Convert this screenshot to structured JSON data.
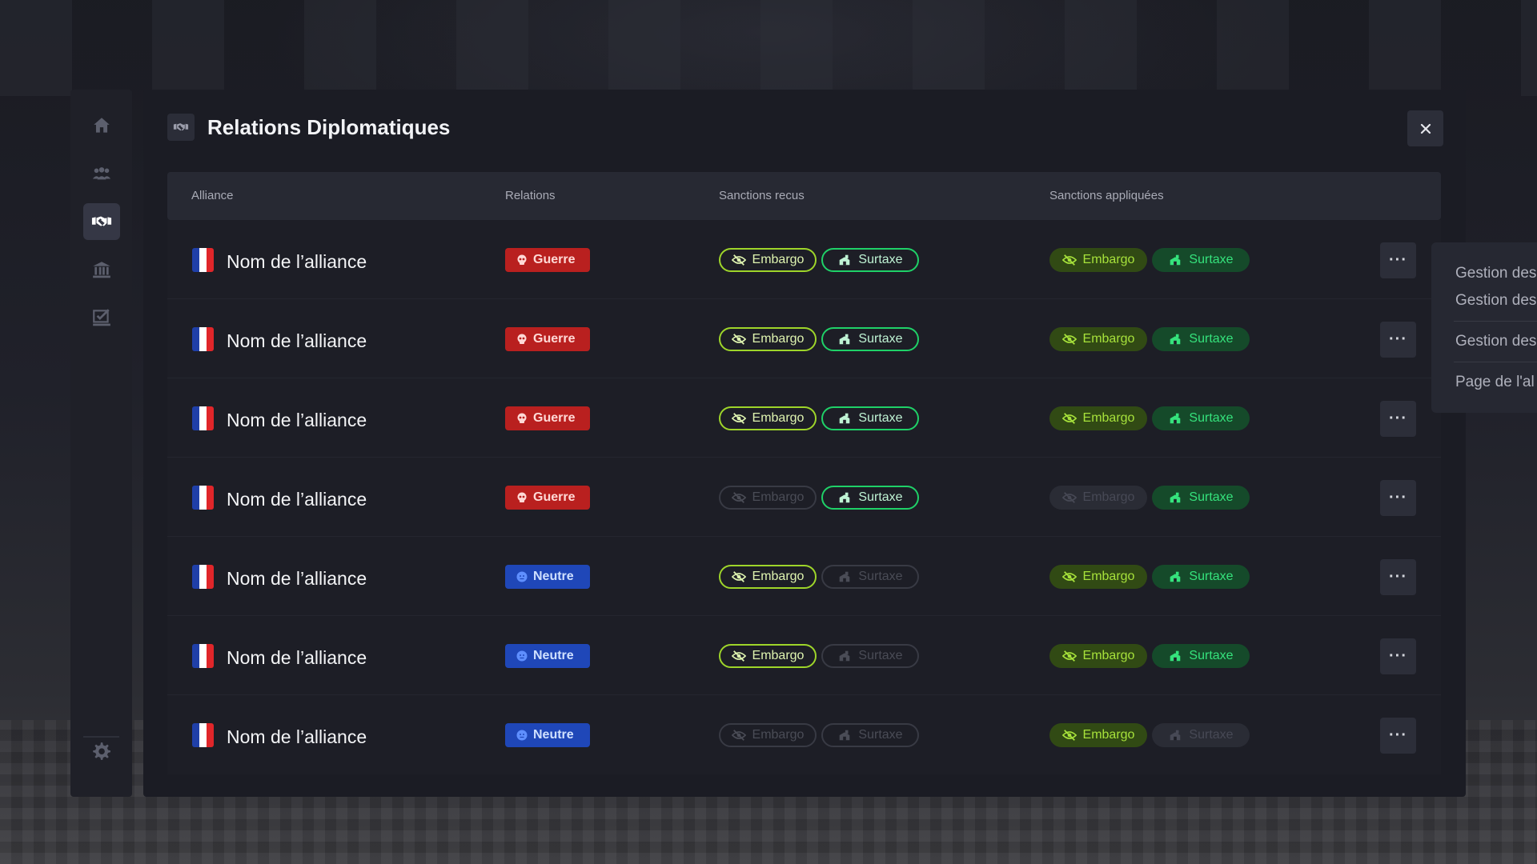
{
  "window": {
    "title": "Relations Diplomatiques",
    "close_icon": "close-icon"
  },
  "sidebar": {
    "items": [
      {
        "icon": "home-icon",
        "active": false
      },
      {
        "icon": "users-icon",
        "active": false
      },
      {
        "icon": "handshake-icon",
        "active": true
      },
      {
        "icon": "bank-icon",
        "active": false
      },
      {
        "icon": "check-box-icon",
        "active": false
      }
    ],
    "settings_icon": "gear-icon"
  },
  "table": {
    "headers": [
      "Alliance",
      "Relations",
      "Sanctions recus",
      "Sanctions appliquées"
    ],
    "rows": [
      {
        "name": "Nom de l’alliance",
        "relation": "Guerre",
        "relation_type": "war",
        "received": {
          "embargo": true,
          "surtaxe": true
        },
        "applied": {
          "embargo": true,
          "surtaxe": true
        }
      },
      {
        "name": "Nom de l’alliance",
        "relation": "Guerre",
        "relation_type": "war",
        "received": {
          "embargo": true,
          "surtaxe": true
        },
        "applied": {
          "embargo": true,
          "surtaxe": true
        }
      },
      {
        "name": "Nom de l’alliance",
        "relation": "Guerre",
        "relation_type": "war",
        "received": {
          "embargo": true,
          "surtaxe": true
        },
        "applied": {
          "embargo": true,
          "surtaxe": true
        }
      },
      {
        "name": "Nom de l’alliance",
        "relation": "Guerre",
        "relation_type": "war",
        "received": {
          "embargo": false,
          "surtaxe": true
        },
        "applied": {
          "embargo": false,
          "surtaxe": true
        }
      },
      {
        "name": "Nom de l’alliance",
        "relation": "Neutre",
        "relation_type": "neutral",
        "received": {
          "embargo": true,
          "surtaxe": false
        },
        "applied": {
          "embargo": true,
          "surtaxe": true
        }
      },
      {
        "name": "Nom de l’alliance",
        "relation": "Neutre",
        "relation_type": "neutral",
        "received": {
          "embargo": true,
          "surtaxe": false
        },
        "applied": {
          "embargo": true,
          "surtaxe": true
        }
      },
      {
        "name": "Nom de l’alliance",
        "relation": "Neutre",
        "relation_type": "neutral",
        "received": {
          "embargo": false,
          "surtaxe": false
        },
        "applied": {
          "embargo": true,
          "surtaxe": false
        }
      }
    ],
    "labels": {
      "embargo": "Embargo",
      "surtaxe": "Surtaxe",
      "more": "···"
    }
  },
  "context_menu": {
    "groups": [
      [
        "Gestion des",
        "Gestion des"
      ],
      [
        "Gestion des"
      ],
      [
        "Page de l'al"
      ]
    ]
  },
  "colors": {
    "war": "#b9201f",
    "neutral": "#1f47b8",
    "embargo": "#9ed52a",
    "surtaxe": "#1fd168"
  }
}
